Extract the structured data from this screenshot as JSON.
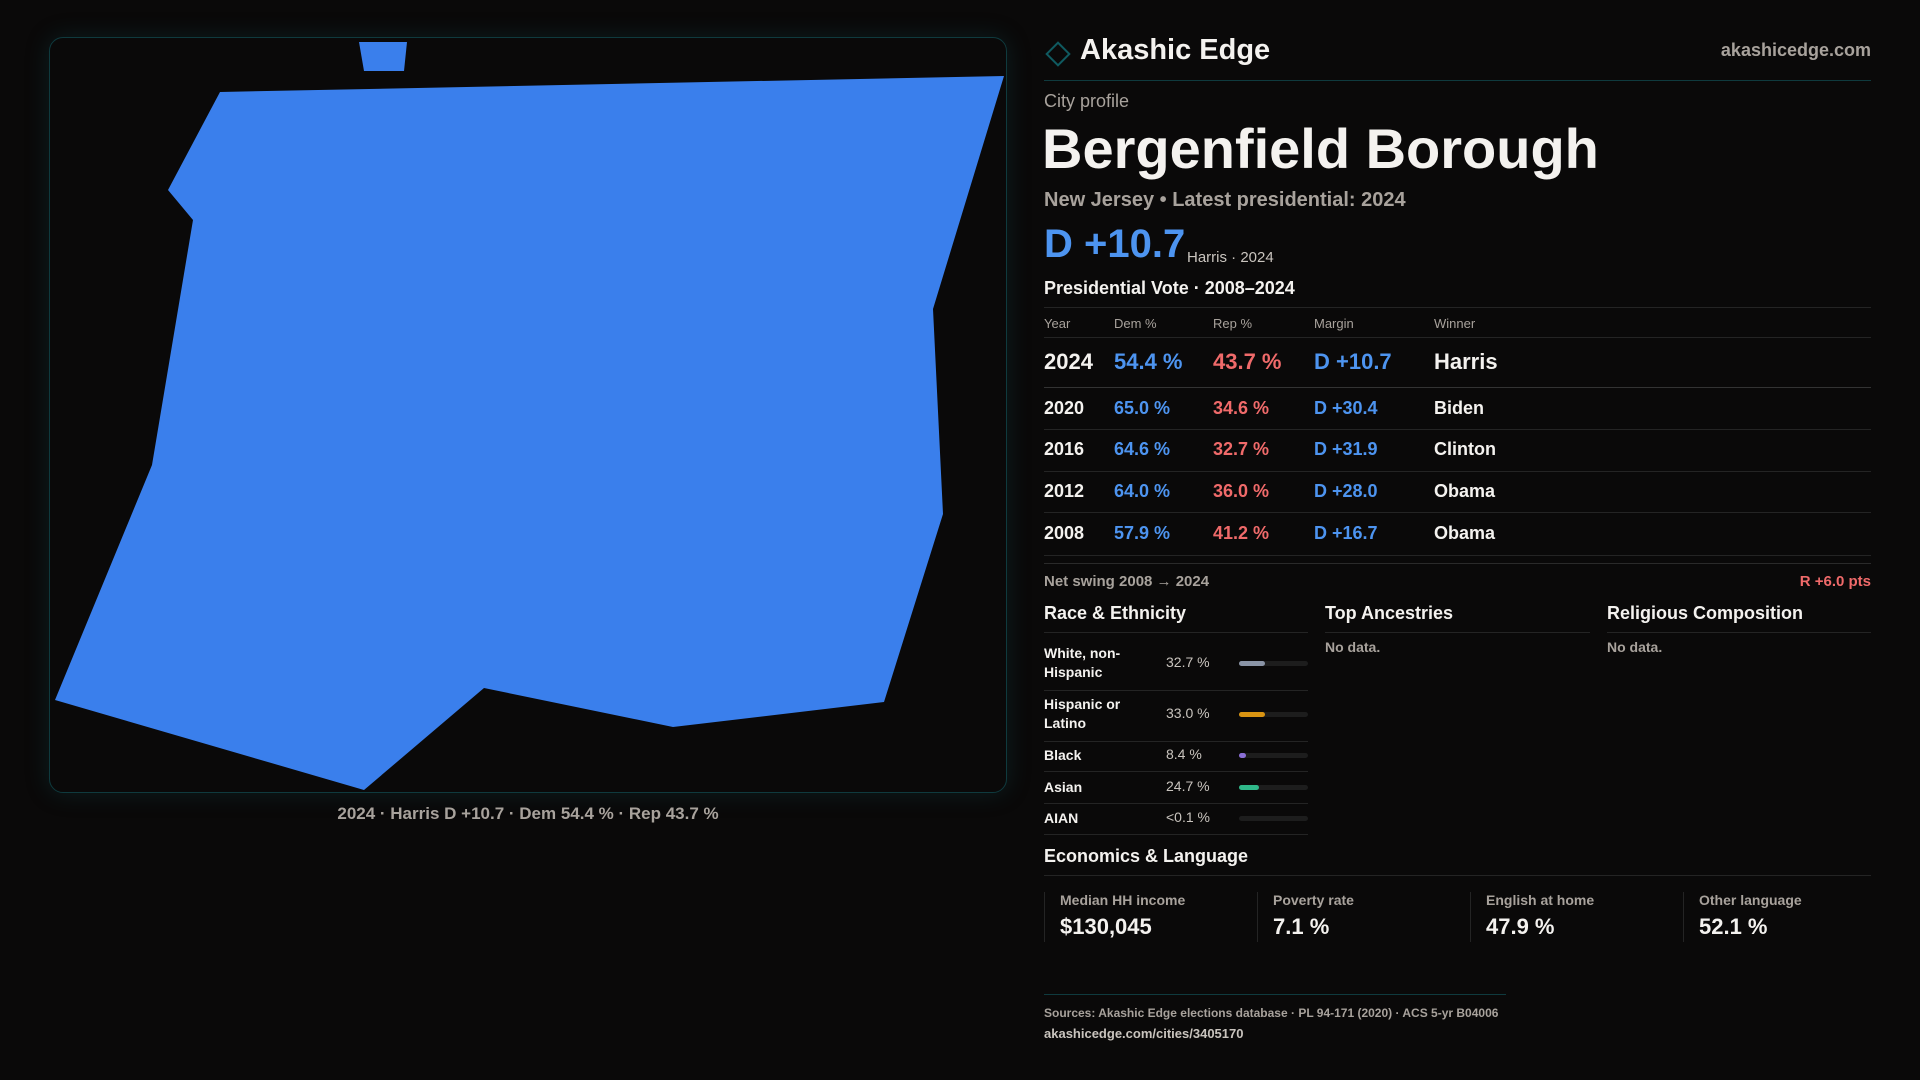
{
  "brand": {
    "name": "Akashic Edge",
    "domain": "akashicedge.com",
    "accent": "#0f4f55"
  },
  "map": {
    "fill": "#3a7fec",
    "caption": "2024 · Harris D +10.7 · Dem 54.4 % · Rep 43.7 %"
  },
  "profile": {
    "kicker": "City profile",
    "title": "Bergenfield Borough",
    "subtitle": "New Jersey • Latest presidential: 2024",
    "margin": "D +10.7",
    "margin_note": "Harris · 2024"
  },
  "presidential": {
    "title": "Presidential Vote · 2008–2024",
    "headers": [
      "Year",
      "Dem %",
      "Rep %",
      "Margin",
      "Winner"
    ],
    "rows": [
      {
        "year": "2024",
        "dem": "54.4 %",
        "rep": "43.7 %",
        "margin": "D +10.7",
        "winner": "Harris"
      },
      {
        "year": "2020",
        "dem": "65.0 %",
        "rep": "34.6 %",
        "margin": "D +30.4",
        "winner": "Biden"
      },
      {
        "year": "2016",
        "dem": "64.6 %",
        "rep": "32.7 %",
        "margin": "D +31.9",
        "winner": "Clinton"
      },
      {
        "year": "2012",
        "dem": "64.0 %",
        "rep": "36.0 %",
        "margin": "D +28.0",
        "winner": "Obama"
      },
      {
        "year": "2008",
        "dem": "57.9 %",
        "rep": "41.2 %",
        "margin": "D +16.7",
        "winner": "Obama"
      }
    ],
    "swing_label": "Net swing 2008 → 2024",
    "swing_value": "R +6.0 pts"
  },
  "race": {
    "title": "Race & Ethnicity",
    "items": [
      {
        "label": "White, non-Hispanic",
        "value": "32.7 %",
        "pct": 32.7,
        "color": "#8a94a6"
      },
      {
        "label": "Hispanic or Latino",
        "value": "33.0 %",
        "pct": 33.0,
        "color": "#d99412"
      },
      {
        "label": "Black",
        "value": "8.4 %",
        "pct": 8.4,
        "color": "#8b6fd6"
      },
      {
        "label": "Asian",
        "value": "24.7 %",
        "pct": 24.7,
        "color": "#2fb889"
      },
      {
        "label": "AIAN",
        "value": "<0.1 %",
        "pct": 0.05,
        "color": "#8a94a6"
      }
    ]
  },
  "ancestries": {
    "title": "Top Ancestries",
    "empty": "No data."
  },
  "religion": {
    "title": "Religious Composition",
    "empty": "No data."
  },
  "economics": {
    "title": "Economics & Language",
    "stats": [
      {
        "label": "Median HH income",
        "value": "$130,045"
      },
      {
        "label": "Poverty rate",
        "value": "7.1 %"
      },
      {
        "label": "English at home",
        "value": "47.9 %"
      },
      {
        "label": "Other language",
        "value": "52.1 %"
      }
    ]
  },
  "footer": {
    "sources": "Sources: Akashic Edge elections database · PL 94-171 (2020) · ACS 5-yr B04006",
    "url": "akashicedge.com/cities/3405170"
  }
}
